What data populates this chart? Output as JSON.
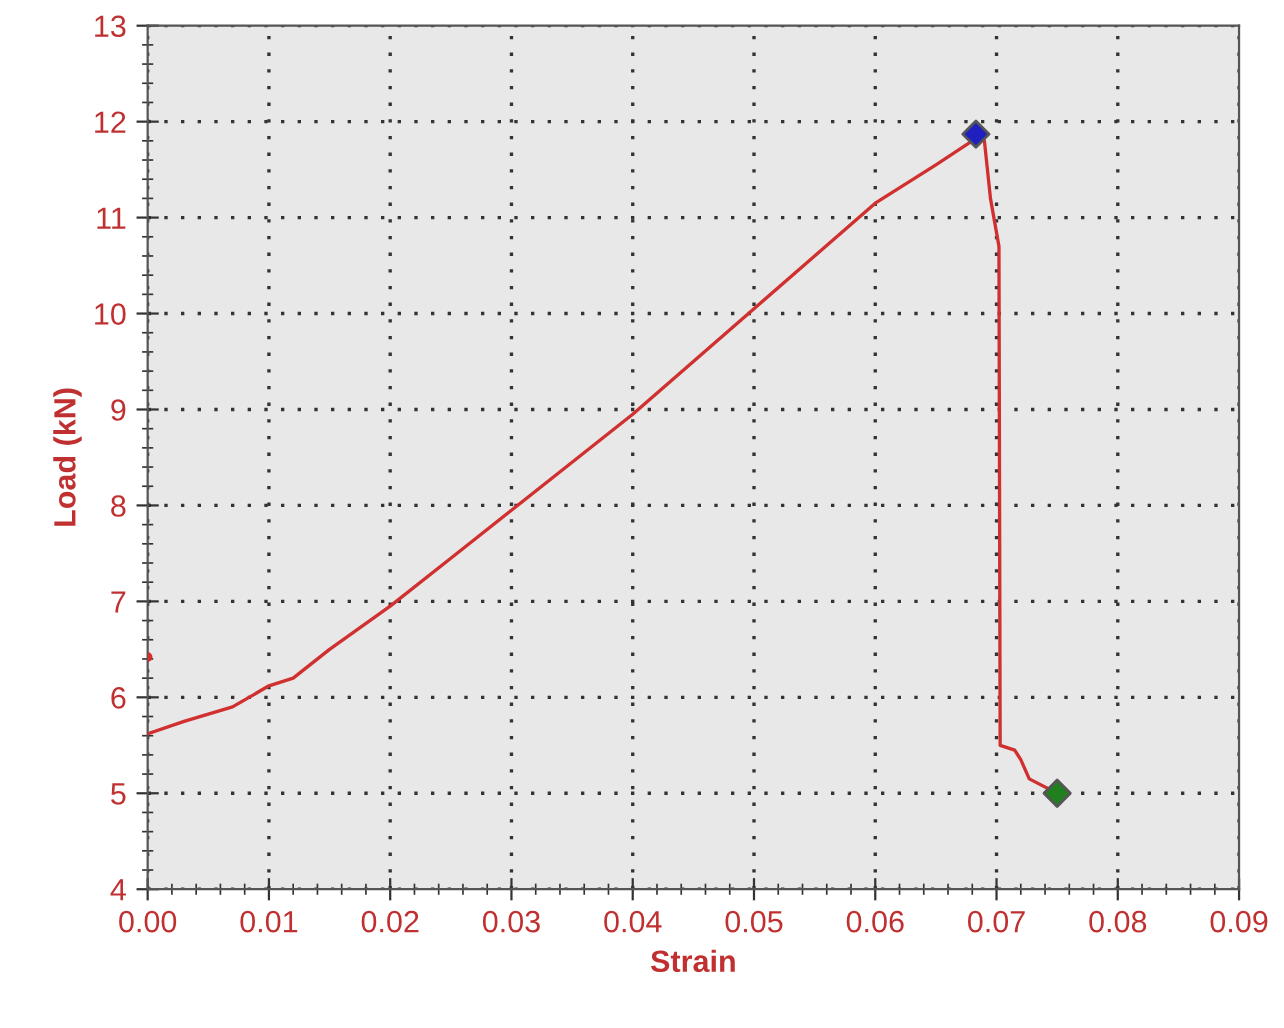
{
  "chart_data": {
    "type": "line",
    "xlabel": "Strain",
    "ylabel": "Load (kN)",
    "series": [
      {
        "color": "#d03030",
        "x": [
          0,
          0.003,
          0.007,
          0.01,
          0.012,
          0.015,
          0.02,
          0.025,
          0.03,
          0.035,
          0.04,
          0.045,
          0.05,
          0.055,
          0.06,
          0.065,
          0.068,
          0.0685,
          0.069,
          0.0695,
          0.0702,
          0.0703,
          0.0715,
          0.072,
          0.0727,
          0.075
        ],
        "values": [
          5.62,
          5.75,
          5.9,
          6.12,
          6.2,
          6.5,
          6.95,
          7.45,
          7.95,
          8.45,
          8.95,
          9.5,
          10.05,
          10.6,
          11.15,
          11.55,
          11.8,
          11.87,
          11.8,
          11.2,
          10.7,
          5.5,
          5.45,
          5.35,
          5.15,
          5.0
        ]
      },
      {
        "type": "scatter",
        "marker": "circle",
        "color": "#d03030",
        "x": [
          0
        ],
        "values": [
          6.42
        ]
      },
      {
        "type": "scatter",
        "marker": "diamond",
        "color": "#2020c0",
        "x": [
          0.0683
        ],
        "values": [
          11.87
        ]
      },
      {
        "type": "scatter",
        "marker": "diamond",
        "color": "#208020",
        "x": [
          0.075
        ],
        "values": [
          5.0
        ]
      }
    ],
    "xlim": [
      0,
      0.09
    ],
    "ylim": [
      4,
      13
    ],
    "xticks": [
      {
        "value": 0,
        "label": "0.00"
      },
      {
        "value": 0.01,
        "label": "0.01"
      },
      {
        "value": 0.02,
        "label": "0.02"
      },
      {
        "value": 0.03,
        "label": "0.03"
      },
      {
        "value": 0.04,
        "label": "0.04"
      },
      {
        "value": 0.05,
        "label": "0.05"
      },
      {
        "value": 0.06,
        "label": "0.06"
      },
      {
        "value": 0.07,
        "label": "0.07"
      },
      {
        "value": 0.08,
        "label": "0.08"
      },
      {
        "value": 0.09,
        "label": "0.09"
      }
    ],
    "yticks": [
      4,
      5,
      6,
      7,
      8,
      9,
      10,
      11,
      12,
      13
    ],
    "grid": true,
    "line_style": "solid"
  }
}
